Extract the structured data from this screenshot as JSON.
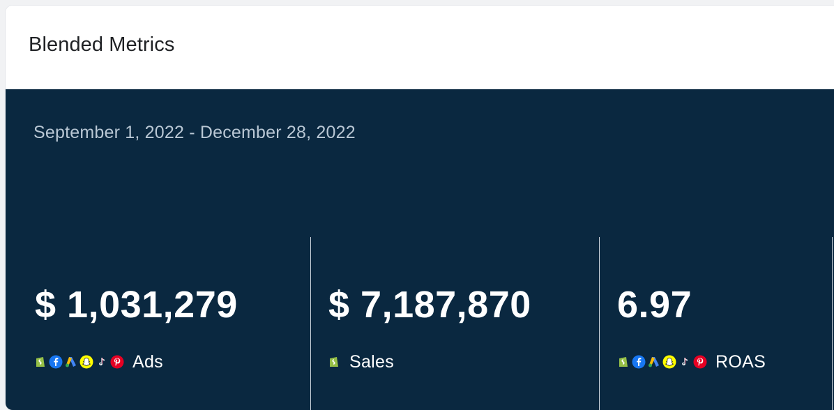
{
  "card": {
    "title": "Blended Metrics"
  },
  "panel": {
    "date_range": "September 1, 2022 - December 28, 2022",
    "background_color": "#0a2840"
  },
  "metrics": [
    {
      "value": "$ 1,031,279",
      "label": "Ads",
      "icons": [
        "shopify-icon",
        "facebook-icon",
        "google-ads-icon",
        "snapchat-icon",
        "tiktok-icon",
        "pinterest-icon"
      ]
    },
    {
      "value": "$ 7,187,870",
      "label": "Sales",
      "icons": [
        "shopify-icon"
      ]
    },
    {
      "value": "6.97",
      "label": "ROAS",
      "icons": [
        "shopify-icon",
        "facebook-icon",
        "google-ads-icon",
        "snapchat-icon",
        "tiktok-icon",
        "pinterest-icon"
      ]
    }
  ],
  "colors": {
    "shopify": "#95bf47",
    "facebook": "#1877f2",
    "google_ads_blue": "#4285f4",
    "google_ads_yellow": "#fbbc04",
    "snapchat": "#fffc00",
    "pinterest": "#e60023"
  }
}
